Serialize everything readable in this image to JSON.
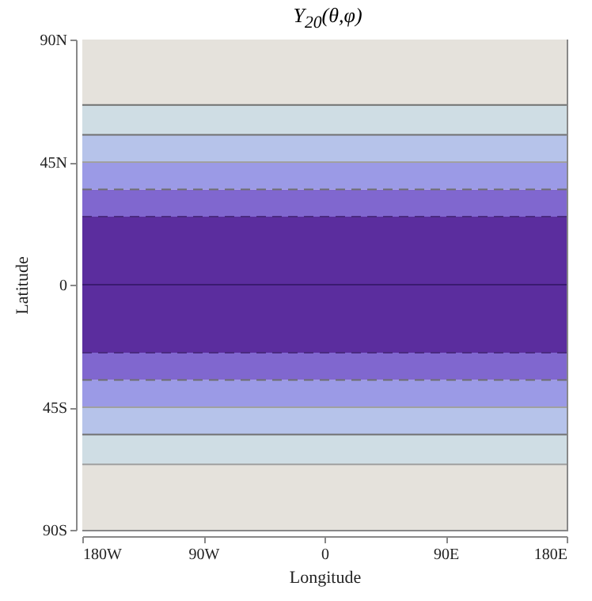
{
  "chart_data": {
    "type": "line",
    "title": "Y$_{20}$(θ,φ)",
    "xlabel": "Longitude",
    "ylabel": "Latitude",
    "xlim": [
      -180,
      180
    ],
    "ylim": [
      -90,
      90
    ],
    "xticks": [
      {
        "value": -180,
        "label": "180W"
      },
      {
        "value": -90,
        "label": "90W"
      },
      0,
      {
        "value": 90,
        "label": "90E"
      },
      {
        "value": 180,
        "label": "180E"
      }
    ],
    "yticks": [
      {
        "value": -90,
        "label": "90S"
      },
      {
        "value": -45,
        "label": "45S"
      },
      0,
      {
        "value": 45,
        "label": "45N"
      },
      {
        "value": 90,
        "label": "90N"
      }
    ],
    "x": [
      -180,
      180
    ],
    "series": [
      {
        "color": "#a0a0a0",
        "line_style": "solid",
        "values": [
          -66,
          -66
        ]
      },
      {
        "color": "#707070",
        "line_style": "solid",
        "values": [
          -55,
          -55
        ]
      },
      {
        "color": "#a0a0a0",
        "line_style": "solid",
        "values": [
          -45,
          -45
        ]
      },
      {
        "color": "#707070",
        "line_style": "dashed",
        "values": [
          -35,
          -35
        ]
      },
      {
        "color": "#4a2a80",
        "line_style": "dashed",
        "values": [
          -25,
          -25
        ]
      },
      {
        "color": "#3a1a70",
        "line_style": "solid",
        "values": [
          0,
          0
        ]
      },
      {
        "color": "#4a2a80",
        "line_style": "dashed",
        "values": [
          25,
          25
        ]
      },
      {
        "color": "#707070",
        "line_style": "dashed",
        "values": [
          35,
          35
        ]
      },
      {
        "color": "#a0a0a0",
        "line_style": "solid",
        "values": [
          45,
          45
        ]
      },
      {
        "color": "#707070",
        "line_style": "solid",
        "values": [
          55,
          55
        ]
      },
      {
        "color": "#707070",
        "line_style": "solid",
        "values": [
          66,
          66
        ]
      }
    ],
    "bands": [
      {
        "axis": "y",
        "from": -90,
        "to": -66,
        "color": "#e5e2dc"
      },
      {
        "axis": "y",
        "from": -66,
        "to": -55,
        "color": "#cfdde4"
      },
      {
        "axis": "y",
        "from": -55,
        "to": -45,
        "color": "#b6c3ea"
      },
      {
        "axis": "y",
        "from": -45,
        "to": -35,
        "color": "#9b9ae6"
      },
      {
        "axis": "y",
        "from": -35,
        "to": -25,
        "color": "#8067cf"
      },
      {
        "axis": "y",
        "from": -25,
        "to": 25,
        "color": "#5b2d9e"
      },
      {
        "axis": "y",
        "from": 25,
        "to": 35,
        "color": "#8067cf"
      },
      {
        "axis": "y",
        "from": 35,
        "to": 45,
        "color": "#9b9ae6"
      },
      {
        "axis": "y",
        "from": 45,
        "to": 55,
        "color": "#b6c3ea"
      },
      {
        "axis": "y",
        "from": 55,
        "to": 66,
        "color": "#cfdde4"
      },
      {
        "axis": "y",
        "from": 66,
        "to": 90,
        "color": "#e5e2dc"
      }
    ]
  }
}
